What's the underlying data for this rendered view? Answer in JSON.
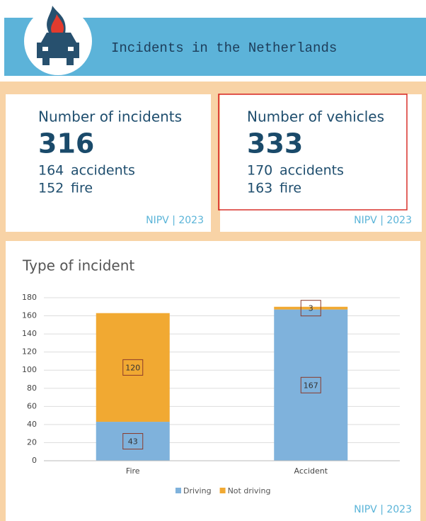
{
  "header": {
    "title": "Incidents in the Netherlands"
  },
  "cards": [
    {
      "label": "Number of incidents",
      "total": 316,
      "lines": [
        {
          "value": 164,
          "text": "accidents"
        },
        {
          "value": 152,
          "text": "fire"
        }
      ],
      "source": "NIPV | 2023"
    },
    {
      "label": "Number of vehicles",
      "total": 333,
      "lines": [
        {
          "value": 170,
          "text": "accidents"
        },
        {
          "value": 163,
          "text": "fire"
        }
      ],
      "source": "NIPV | 2023"
    }
  ],
  "chart_data": {
    "type": "bar",
    "stacked": true,
    "title": "Type of incident",
    "categories": [
      "Fire",
      "Accident"
    ],
    "series": [
      {
        "name": "Driving",
        "color": "#7fb2dc",
        "values": [
          43,
          167
        ]
      },
      {
        "name": "Not driving",
        "color": "#f1a932",
        "values": [
          120,
          3
        ]
      }
    ],
    "ylim": [
      0,
      180
    ],
    "yticks": [
      0,
      20,
      40,
      60,
      80,
      100,
      120,
      140,
      160,
      180
    ],
    "grid": true,
    "legend": "bottom",
    "source": "NIPV | 2023"
  }
}
